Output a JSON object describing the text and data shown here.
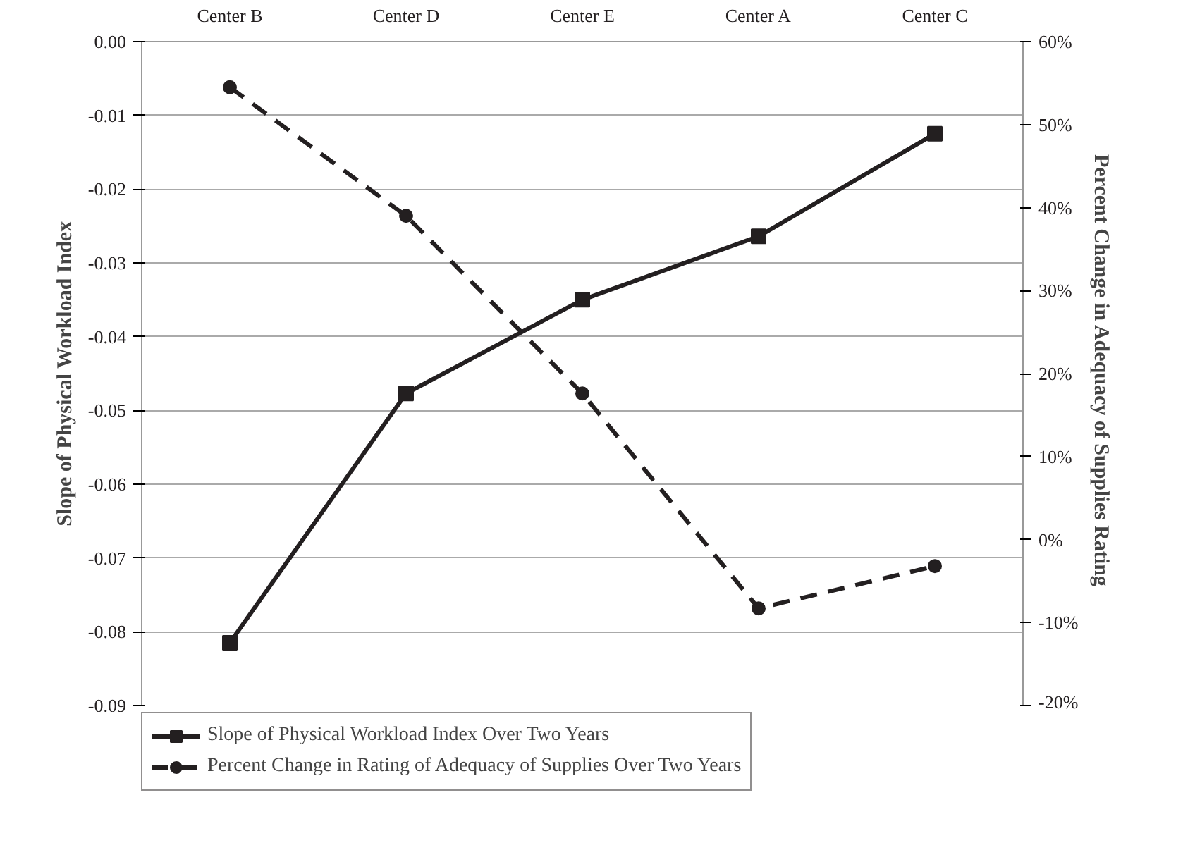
{
  "chart_data": {
    "type": "line",
    "ylabel": "Slope of Physical Workload Index",
    "y2label": "Percent Change in Adequacy of Supplies  Rating",
    "categories": [
      "Center B",
      "Center D",
      "Center E",
      "Center A",
      "Center C"
    ],
    "series": [
      {
        "name": "Slope of Physical Workload Index Over Two Years",
        "color": "#231f20",
        "marker": "square",
        "line_style": "solid",
        "values": [
          -0.0815,
          -0.0477,
          -0.035,
          -0.0264,
          -0.0125
        ]
      },
      {
        "name": "Percent Change in Rating of Adequacy of Supplies Over Two Years",
        "color": "#231f20",
        "marker": "circle",
        "line_style": "dashed",
        "axis": "y2",
        "values": [
          54.5,
          39,
          17.6,
          -8.3,
          -3.2
        ]
      }
    ],
    "ylim": [
      -0.09,
      0
    ],
    "yticks": [
      -0.09,
      -0.08,
      -0.07,
      -0.06,
      -0.05,
      -0.04,
      -0.03,
      -0.02,
      -0.01,
      {
        "value": 0,
        "label": "0.00"
      }
    ],
    "y2lim": [
      -20,
      60
    ],
    "y2ticks": [
      {
        "value": -20,
        "label": "-20%"
      },
      {
        "value": -10,
        "label": "-10%"
      },
      {
        "value": 0,
        "label": "0%"
      },
      {
        "value": 10,
        "label": "10%"
      },
      {
        "value": 20,
        "label": "20%"
      },
      {
        "value": 30,
        "label": "30%"
      },
      {
        "value": 40,
        "label": "40%"
      },
      {
        "value": 50,
        "label": "50%"
      },
      {
        "value": 60,
        "label": "60%"
      }
    ],
    "grid": "y",
    "legend": "bottom"
  }
}
